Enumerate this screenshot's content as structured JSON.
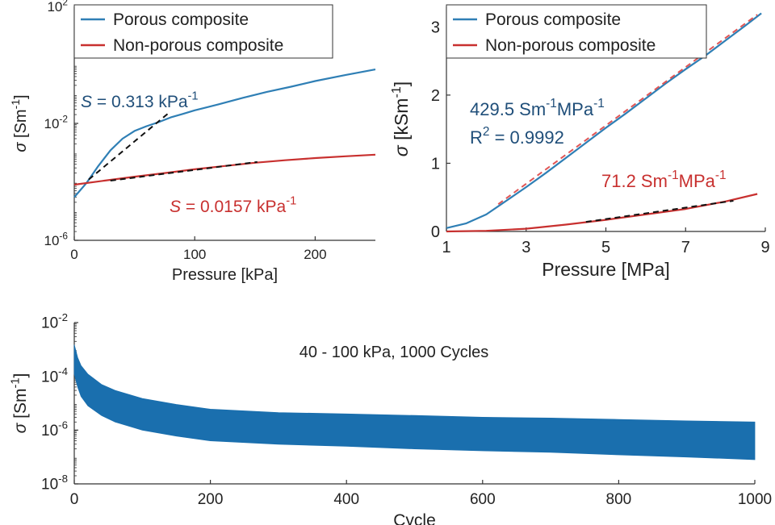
{
  "chart_data": [
    {
      "type": "line",
      "panel": "top-left",
      "yscale": "log",
      "xlabel": "Pressure [kPa]",
      "ylabel_symbol": "σ",
      "ylabel_unit": "[Sm",
      "ylabel_unit_sup": "-1",
      "ylabel_unit_end": "]",
      "xlim": [
        0,
        250
      ],
      "ylim": [
        1e-06,
        100
      ],
      "x_ticks": [
        {
          "value": 0,
          "label": "0"
        },
        {
          "value": 100,
          "label": "100"
        },
        {
          "value": 200,
          "label": "200"
        }
      ],
      "y_ticks": [
        {
          "value": 1e-06,
          "base": "10",
          "exp": "-6"
        },
        {
          "value": 0.01,
          "base": "10",
          "exp": "-2"
        },
        {
          "value": 100,
          "base": "10",
          "exp": "2"
        }
      ],
      "legend": {
        "placement": "top-left",
        "entries": [
          "Porous composite",
          "Non-porous composite"
        ]
      },
      "series": [
        {
          "name": "Porous composite",
          "color": "#2f7fb5",
          "x": [
            0,
            10,
            20,
            30,
            40,
            50,
            60,
            70,
            80,
            90,
            100,
            120,
            140,
            160,
            180,
            200,
            225,
            250
          ],
          "y": [
            3e-05,
            9e-05,
            0.00035,
            0.0012,
            0.003,
            0.0055,
            0.008,
            0.011,
            0.016,
            0.021,
            0.028,
            0.045,
            0.075,
            0.12,
            0.18,
            0.28,
            0.45,
            0.7
          ]
        },
        {
          "name": "Non-porous composite",
          "color": "#c8302f",
          "x": [
            0,
            25,
            50,
            75,
            100,
            125,
            150,
            175,
            200,
            225,
            250
          ],
          "y": [
            8e-05,
            0.00011,
            0.00015,
            0.0002,
            0.00027,
            0.00035,
            0.00045,
            0.00055,
            0.00065,
            0.00075,
            0.00085
          ]
        }
      ],
      "fits": [
        {
          "color": "#111111",
          "x": [
            12,
            78
          ],
          "y": [
            0.00012,
            0.022
          ]
        },
        {
          "color": "#111111",
          "x": [
            30,
            152
          ],
          "y": [
            0.00011,
            0.00048
          ]
        }
      ],
      "annotations": [
        {
          "id": "s-porous",
          "symbol": "S",
          "value": " = 0.313 kPa",
          "sup": "-1",
          "color": "#1f4e79"
        },
        {
          "id": "s-nonporous",
          "symbol": "S",
          "value": " = 0.0157 kPa",
          "sup": "-1",
          "color": "#c8302f"
        }
      ]
    },
    {
      "type": "line",
      "panel": "top-right",
      "xlabel": "Pressure [MPa]",
      "ylabel_symbol": "σ",
      "ylabel_unit": "[kSm",
      "ylabel_unit_sup": "-1",
      "ylabel_unit_end": "]",
      "xlim": [
        1,
        9
      ],
      "ylim": [
        0,
        3.3
      ],
      "x_ticks": [
        {
          "value": 1,
          "label": "1"
        },
        {
          "value": 3,
          "label": "3"
        },
        {
          "value": 5,
          "label": "5"
        },
        {
          "value": 7,
          "label": "7"
        },
        {
          "value": 9,
          "label": "9"
        }
      ],
      "y_ticks": [
        {
          "value": 0,
          "label": "0"
        },
        {
          "value": 1,
          "label": "1"
        },
        {
          "value": 2,
          "label": "2"
        },
        {
          "value": 3,
          "label": "3"
        }
      ],
      "legend": {
        "placement": "top-left",
        "entries": [
          "Porous composite",
          "Non-porous composite"
        ]
      },
      "series": [
        {
          "name": "Porous composite",
          "color": "#2f7fb5",
          "x": [
            1,
            1.5,
            2,
            2.5,
            3,
            3.5,
            4,
            4.5,
            5,
            5.5,
            6,
            6.5,
            7,
            7.5,
            8,
            8.5,
            8.9
          ],
          "y": [
            0.05,
            0.12,
            0.25,
            0.45,
            0.65,
            0.86,
            1.08,
            1.3,
            1.52,
            1.73,
            1.95,
            2.17,
            2.38,
            2.58,
            2.8,
            3.02,
            3.2
          ]
        },
        {
          "name": "Non-porous composite",
          "color": "#c8302f",
          "x": [
            1,
            2,
            3,
            4,
            5,
            6,
            7,
            8,
            8.8
          ],
          "y": [
            0.0,
            0.01,
            0.04,
            0.1,
            0.17,
            0.25,
            0.33,
            0.44,
            0.55
          ]
        }
      ],
      "fits": [
        {
          "color": "#e05555",
          "x": [
            2.3,
            8.8
          ],
          "y": [
            0.4,
            3.18
          ]
        },
        {
          "color": "#111111",
          "x": [
            4.5,
            8.2
          ],
          "y": [
            0.14,
            0.45
          ]
        }
      ],
      "annotations": [
        {
          "id": "slope-porous",
          "value": "429.5 Sm",
          "sup": "-1",
          "value_end": "MPa",
          "sup2": "-1",
          "color": "#1f4e79"
        },
        {
          "id": "r2",
          "value": "R",
          "sup": "2",
          "value_end": " = 0.9992",
          "color": "#1f4e79"
        },
        {
          "id": "slope-nonporous",
          "value": "71.2 Sm",
          "sup": "-1",
          "value_end": "MPa",
          "sup2": "-1",
          "color": "#c8302f"
        }
      ]
    },
    {
      "type": "area",
      "panel": "bottom",
      "yscale": "log",
      "title": "40 - 100 kPa, 1000 Cycles",
      "xlabel": "Cycle",
      "ylabel_symbol": "σ",
      "ylabel_unit": "[Sm",
      "ylabel_unit_sup": "-1",
      "ylabel_unit_end": "]",
      "xlim": [
        0,
        1000
      ],
      "ylim": [
        1e-08,
        0.01
      ],
      "x_ticks": [
        {
          "value": 0,
          "label": "0"
        },
        {
          "value": 200,
          "label": "200"
        },
        {
          "value": 400,
          "label": "400"
        },
        {
          "value": 600,
          "label": "600"
        },
        {
          "value": 800,
          "label": "800"
        },
        {
          "value": 1000,
          "label": "1000"
        }
      ],
      "y_ticks": [
        {
          "value": 1e-08,
          "base": "10",
          "exp": "-8"
        },
        {
          "value": 1e-06,
          "base": "10",
          "exp": "-6"
        },
        {
          "value": 0.0001,
          "base": "10",
          "exp": "-4"
        },
        {
          "value": 0.01,
          "base": "10",
          "exp": "-2"
        }
      ],
      "series": [
        {
          "color": "#1a6fae",
          "x": [
            0,
            5,
            10,
            20,
            40,
            60,
            100,
            150,
            200,
            300,
            400,
            500,
            600,
            700,
            800,
            900,
            1000
          ],
          "y_upper": [
            0.0015,
            0.0005,
            0.00025,
            0.00012,
            5e-05,
            3e-05,
            1.5e-05,
            9e-06,
            6e-06,
            4.5e-06,
            4e-06,
            3.5e-06,
            3e-06,
            2.8e-06,
            2.5e-06,
            2.2e-06,
            2e-06
          ],
          "y_lower": [
            0.00012,
            4e-05,
            1.8e-05,
            8e-06,
            3.5e-06,
            2e-06,
            1e-06,
            6e-07,
            4e-07,
            3e-07,
            2.5e-07,
            2e-07,
            1.7e-07,
            1.5e-07,
            1.2e-07,
            1e-07,
            8e-08
          ]
        }
      ]
    }
  ]
}
